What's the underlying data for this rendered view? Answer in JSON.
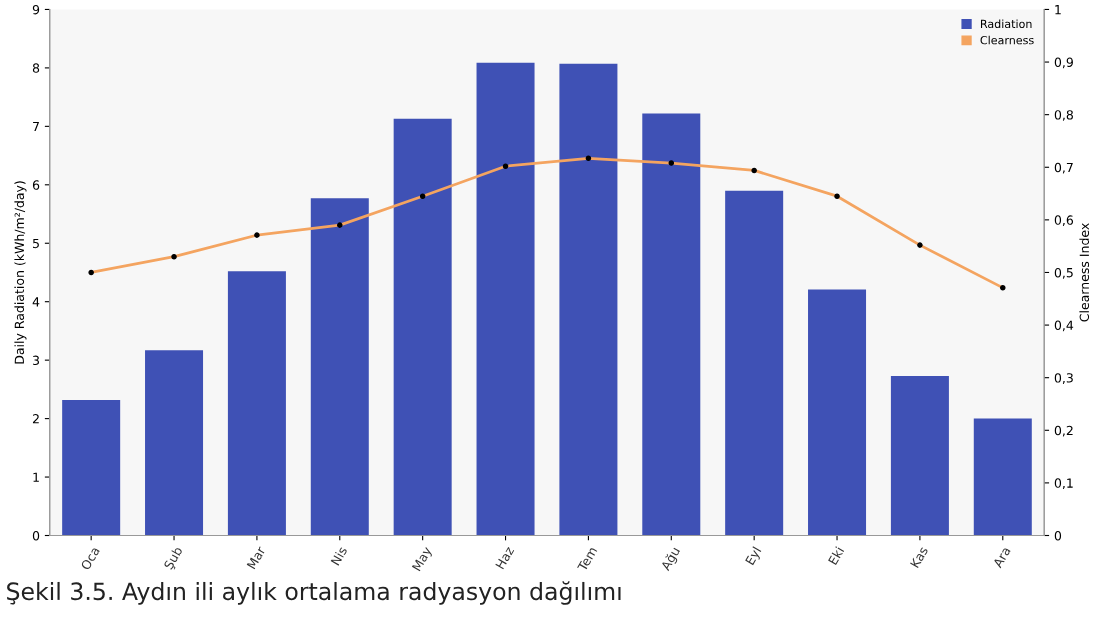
{
  "chart_data": {
    "type": "bar",
    "categories": [
      "Oca",
      "Şub",
      "Mar",
      "Nis",
      "May",
      "Haz",
      "Tem",
      "Ağu",
      "Eyl",
      "Eki",
      "Kas",
      "Ara"
    ],
    "series": [
      {
        "name": "Radiation",
        "color": "#3f51b5",
        "values": [
          2.32,
          3.17,
          4.52,
          5.77,
          7.13,
          8.09,
          8.07,
          7.22,
          5.9,
          4.21,
          2.73,
          2.0
        ]
      },
      {
        "name": "Clearness",
        "type": "line",
        "axis": "y2",
        "color": "#f4a460",
        "marker": "circle",
        "values": [
          0.5,
          0.53,
          0.571,
          0.59,
          0.645,
          0.702,
          0.717,
          0.708,
          0.694,
          0.645,
          0.552,
          0.471
        ]
      }
    ],
    "ylabel": "Daily Radiation (kWh/m²/day)",
    "y2label": "Clearness Index",
    "ylim": [
      0,
      9
    ],
    "yticks": [
      0,
      1,
      2,
      3,
      4,
      5,
      6,
      7,
      8,
      9
    ],
    "y2lim": [
      0,
      1
    ],
    "y2ticks": [
      0,
      {
        "value": 0.1,
        "label": "0,1"
      },
      {
        "value": 0.2,
        "label": "0,2"
      },
      {
        "value": 0.3,
        "label": "0,3"
      },
      {
        "value": 0.4,
        "label": "0,4"
      },
      {
        "value": 0.5,
        "label": "0,5"
      },
      {
        "value": 0.6,
        "label": "0,6"
      },
      {
        "value": 0.7,
        "label": "0,7"
      },
      {
        "value": 0.8,
        "label": "0,8"
      },
      {
        "value": 0.9,
        "label": "0,9"
      },
      1
    ],
    "legend": "top right",
    "grid": false,
    "annotations": [
      "Şekil 3.5. Aydın ili aylık ortalama radyasyon dağılımı"
    ]
  }
}
